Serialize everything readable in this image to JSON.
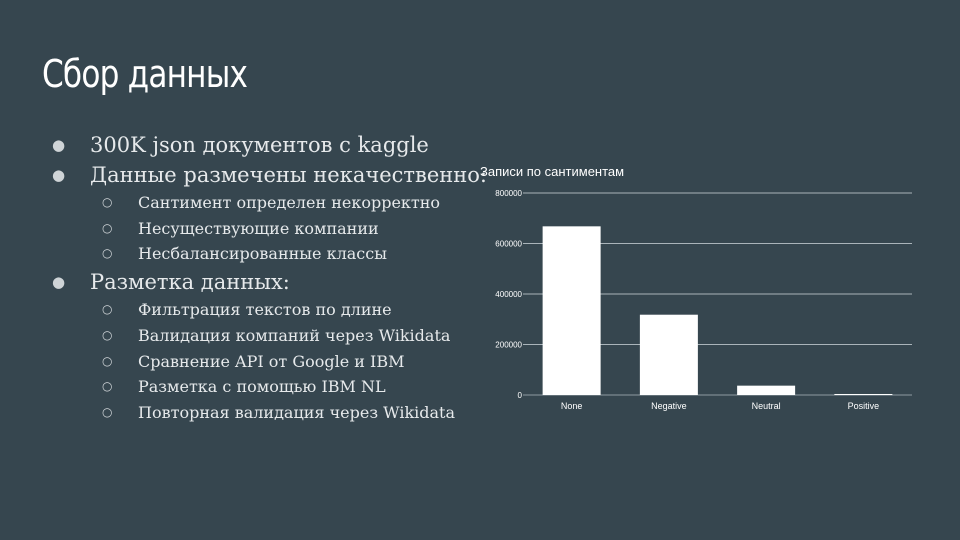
{
  "slide": {
    "title": "Сбор данных",
    "bullets": [
      {
        "text": "300K json документов с kaggle",
        "level": 1
      },
      {
        "text": "Данные размечены некачественно:",
        "level": 1
      },
      {
        "text": "Сантимент определен некорректно",
        "level": 2
      },
      {
        "text": "Несуществующие компании",
        "level": 2
      },
      {
        "text": "Несбалансированные классы",
        "level": 2
      },
      {
        "text": "Разметка данных:",
        "level": 1
      },
      {
        "text": "Фильтрация текстов по длине",
        "level": 2
      },
      {
        "text": "Валидация компаний через Wikidata",
        "level": 2
      },
      {
        "text": "Сравнение API от Google и IBM",
        "level": 2
      },
      {
        "text": "Разметка с помощью IBM NL",
        "level": 2
      },
      {
        "text": "Повторная валидация через Wikidata",
        "level": 2
      }
    ]
  },
  "chart_data": {
    "type": "bar",
    "title": "Записи по сантиментам",
    "categories": [
      "None",
      "Negative",
      "Neutral",
      "Positive"
    ],
    "values": [
      668000,
      318000,
      37000,
      4000
    ],
    "ylim": [
      0,
      800000
    ],
    "yticks": [
      0,
      200000,
      400000,
      600000,
      800000
    ],
    "ytick_labels": [
      "0",
      "200000",
      "400000",
      "600000",
      "800000"
    ],
    "xlabel": "",
    "ylabel": "",
    "grid": true,
    "legend": "none",
    "colors": {
      "bar": "#ffffff",
      "grid": "#aab4ba",
      "text": "#ffffff"
    }
  }
}
